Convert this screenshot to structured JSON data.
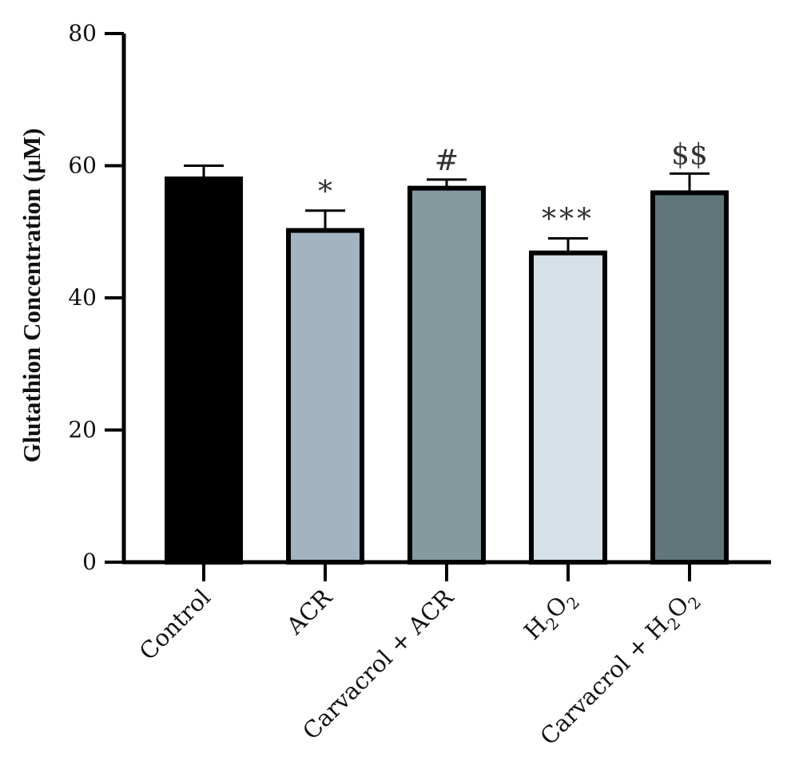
{
  "chart_data": {
    "type": "bar",
    "categories": [
      "Control",
      "ACR",
      "Carvacrol + ACR",
      "H2O2",
      "Carvacrol + H2O2"
    ],
    "category_display": [
      [
        {
          "t": "Control"
        }
      ],
      [
        {
          "t": "ACR"
        }
      ],
      [
        {
          "t": "Carvacrol + ACR"
        }
      ],
      [
        {
          "t": "H"
        },
        {
          "t": "2",
          "sub": true
        },
        {
          "t": "O"
        },
        {
          "t": "2",
          "sub": true
        }
      ],
      [
        {
          "t": "Carvacrol + H"
        },
        {
          "t": "2",
          "sub": true
        },
        {
          "t": "O"
        },
        {
          "t": "2",
          "sub": true
        }
      ]
    ],
    "values": [
      58,
      50.2,
      56.6,
      46.8,
      55.9
    ],
    "errors": [
      2,
      3,
      1.3,
      2.2,
      2.9
    ],
    "significance": [
      "",
      "*",
      "#",
      "***",
      "$$"
    ],
    "colors": [
      "#000000",
      "#a2b4c2",
      "#839a9f",
      "#d6e0e6",
      "#617679"
    ],
    "xlabel": "",
    "ylabel": "Glutathion Concentration (μM)",
    "ylim": [
      0,
      80
    ],
    "yticks": [
      0,
      20,
      40,
      60,
      80
    ],
    "grid": false
  }
}
